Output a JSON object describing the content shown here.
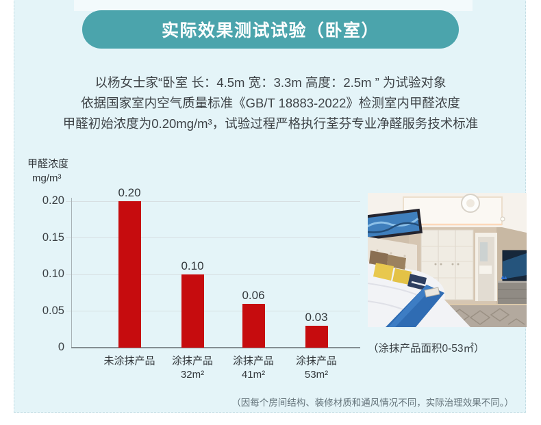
{
  "header": {
    "title": "实际效果测试试验（卧室）"
  },
  "intro": {
    "lines": [
      "以杨女士家“卧室 长：4.5m 宽：3.3m 高度：2.5m ” 为试验对象",
      "依据国家室内空气质量标准《GB/T 18883-2022》检测室内甲醛浓度",
      "甲醛初始浓度为0.20mg/m³，试验过程严格执行荃芬专业净醛服务技术标准"
    ]
  },
  "chart_data": {
    "type": "bar",
    "title": "",
    "ylabel_lines": [
      "甲醛浓度",
      "mg/m³"
    ],
    "categories": [
      [
        "未涂抹产品"
      ],
      [
        "涂抹产品",
        "32m²"
      ],
      [
        "涂抹产品",
        "41m²"
      ],
      [
        "涂抹产品",
        "53m²"
      ]
    ],
    "values": [
      0.2,
      0.1,
      0.06,
      0.03
    ],
    "value_labels": [
      "0.20",
      "0.10",
      "0.06",
      "0.03"
    ],
    "ytick_values": [
      0,
      0.05,
      0.1,
      0.15,
      0.2
    ],
    "ytick_labels": [
      "0",
      "0.05",
      "0.10",
      "0.15",
      "0.20"
    ],
    "ylim": [
      0,
      0.21
    ],
    "grid": true,
    "legend_position": "none",
    "bar_color": "#c60c0e"
  },
  "photo": {
    "caption": "（涂抹产品面积0-53㎡）"
  },
  "footnote": {
    "text": "（因每个房间结构、装修材质和通风情况不同，实际治理效果不同。）"
  },
  "colors": {
    "accent_teal": "#4ba4ac",
    "bar_red": "#c60c0e",
    "card_bg": "#e4f4f8",
    "text_dark": "#3e4347",
    "note_gray": "#64737a"
  }
}
